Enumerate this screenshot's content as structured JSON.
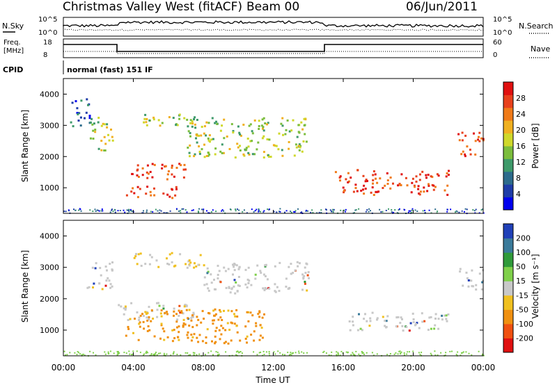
{
  "header": {
    "station": "Christmas Valley West (fitACF)",
    "beam": "Beam 00",
    "date": "06/Jun/2011"
  },
  "panels": {
    "nsky": {
      "label": "N.Sky",
      "ticks_left": [
        "10^5",
        "10^0"
      ],
      "ticks_right": [
        "10^5",
        "10^0"
      ],
      "right_label": "N.Search"
    },
    "freq": {
      "label_line1": "Freq.",
      "label_line2": "[MHz]",
      "ticks_left": [
        "18",
        "8"
      ],
      "ticks_right": [
        "60",
        "0"
      ],
      "right_label": "Nave"
    },
    "cpid": {
      "label": "CPID",
      "text": "normal (fast) 151 IF"
    }
  },
  "colors": {
    "line": "#000000",
    "dotted": "#000000"
  },
  "chart_data": [
    {
      "type": "heatmap",
      "name": "power",
      "ylabel": "Slant Range [km]",
      "xlim": [
        0,
        24
      ],
      "ylim": [
        180,
        4500
      ],
      "yticks": [
        "1000",
        "2000",
        "3000",
        "4000"
      ],
      "colorbar": {
        "label": "Power [dB]",
        "ticks": [
          "4",
          "8",
          "12",
          "16",
          "20",
          "24",
          "28"
        ],
        "colors": [
          "#0000ee",
          "#1e3ca8",
          "#2c6b8c",
          "#3e9a6a",
          "#7bbd3c",
          "#cfd82a",
          "#f0b020",
          "#f07a18",
          "#e8401c",
          "#e01010"
        ]
      },
      "features": [
        {
          "t0": 0.3,
          "t1": 1.5,
          "r0": 3000,
          "r1": 3900,
          "level": "weak"
        },
        {
          "t0": 1.5,
          "t1": 2.9,
          "r0": 2200,
          "r1": 3300,
          "level": "medium"
        },
        {
          "t0": 3.1,
          "t1": 7.0,
          "r0": 1300,
          "r1": 1800,
          "level": "strong"
        },
        {
          "t0": 3.5,
          "t1": 6.5,
          "r0": 700,
          "r1": 1100,
          "level": "strong"
        },
        {
          "t0": 4.5,
          "t1": 8.0,
          "r0": 3000,
          "r1": 3400,
          "level": "medium"
        },
        {
          "t0": 7.0,
          "t1": 14.0,
          "r0": 2000,
          "r1": 3300,
          "level": "medium"
        },
        {
          "t0": 15.5,
          "t1": 22.0,
          "r0": 800,
          "r1": 1600,
          "level": "strong"
        },
        {
          "t0": 22.5,
          "t1": 24.0,
          "r0": 2000,
          "r1": 2800,
          "level": "strong"
        }
      ]
    },
    {
      "type": "heatmap",
      "name": "velocity",
      "ylabel": "Slant Range [km]",
      "xlabel": "Time UT",
      "xlim": [
        0,
        24
      ],
      "ylim": [
        180,
        4500
      ],
      "yticks": [
        "1000",
        "2000",
        "3000",
        "4000"
      ],
      "xticks": [
        "00:00",
        "04:00",
        "08:00",
        "12:00",
        "16:00",
        "20:00",
        "00:00"
      ],
      "colorbar": {
        "label": "Velocity [m s⁻¹]",
        "ticks": [
          "200",
          "100",
          "50",
          "15",
          "-15",
          "-50",
          "-100",
          "-200"
        ],
        "colors": [
          "#2040b8",
          "#3a7a9a",
          "#2f9a3a",
          "#7fd04a",
          "#c8c8c8",
          "#f0c020",
          "#f09010",
          "#f05010",
          "#e01010"
        ]
      },
      "features": [
        {
          "t0": 1.2,
          "t1": 2.8,
          "r0": 2300,
          "r1": 3200,
          "level": "gray"
        },
        {
          "t0": 3.1,
          "t1": 7.5,
          "r0": 1300,
          "r1": 1900,
          "level": "gray"
        },
        {
          "t0": 3.5,
          "t1": 11.5,
          "r0": 600,
          "r1": 1700,
          "level": "orange"
        },
        {
          "t0": 4.0,
          "t1": 8.0,
          "r0": 3000,
          "r1": 3500,
          "level": "yellow"
        },
        {
          "t0": 8.0,
          "t1": 14.0,
          "r0": 2200,
          "r1": 3200,
          "level": "gray"
        },
        {
          "t0": 16.0,
          "t1": 22.0,
          "r0": 1000,
          "r1": 1600,
          "level": "gray"
        },
        {
          "t0": 22.5,
          "t1": 24.0,
          "r0": 2300,
          "r1": 3000,
          "level": "gray"
        }
      ]
    }
  ]
}
